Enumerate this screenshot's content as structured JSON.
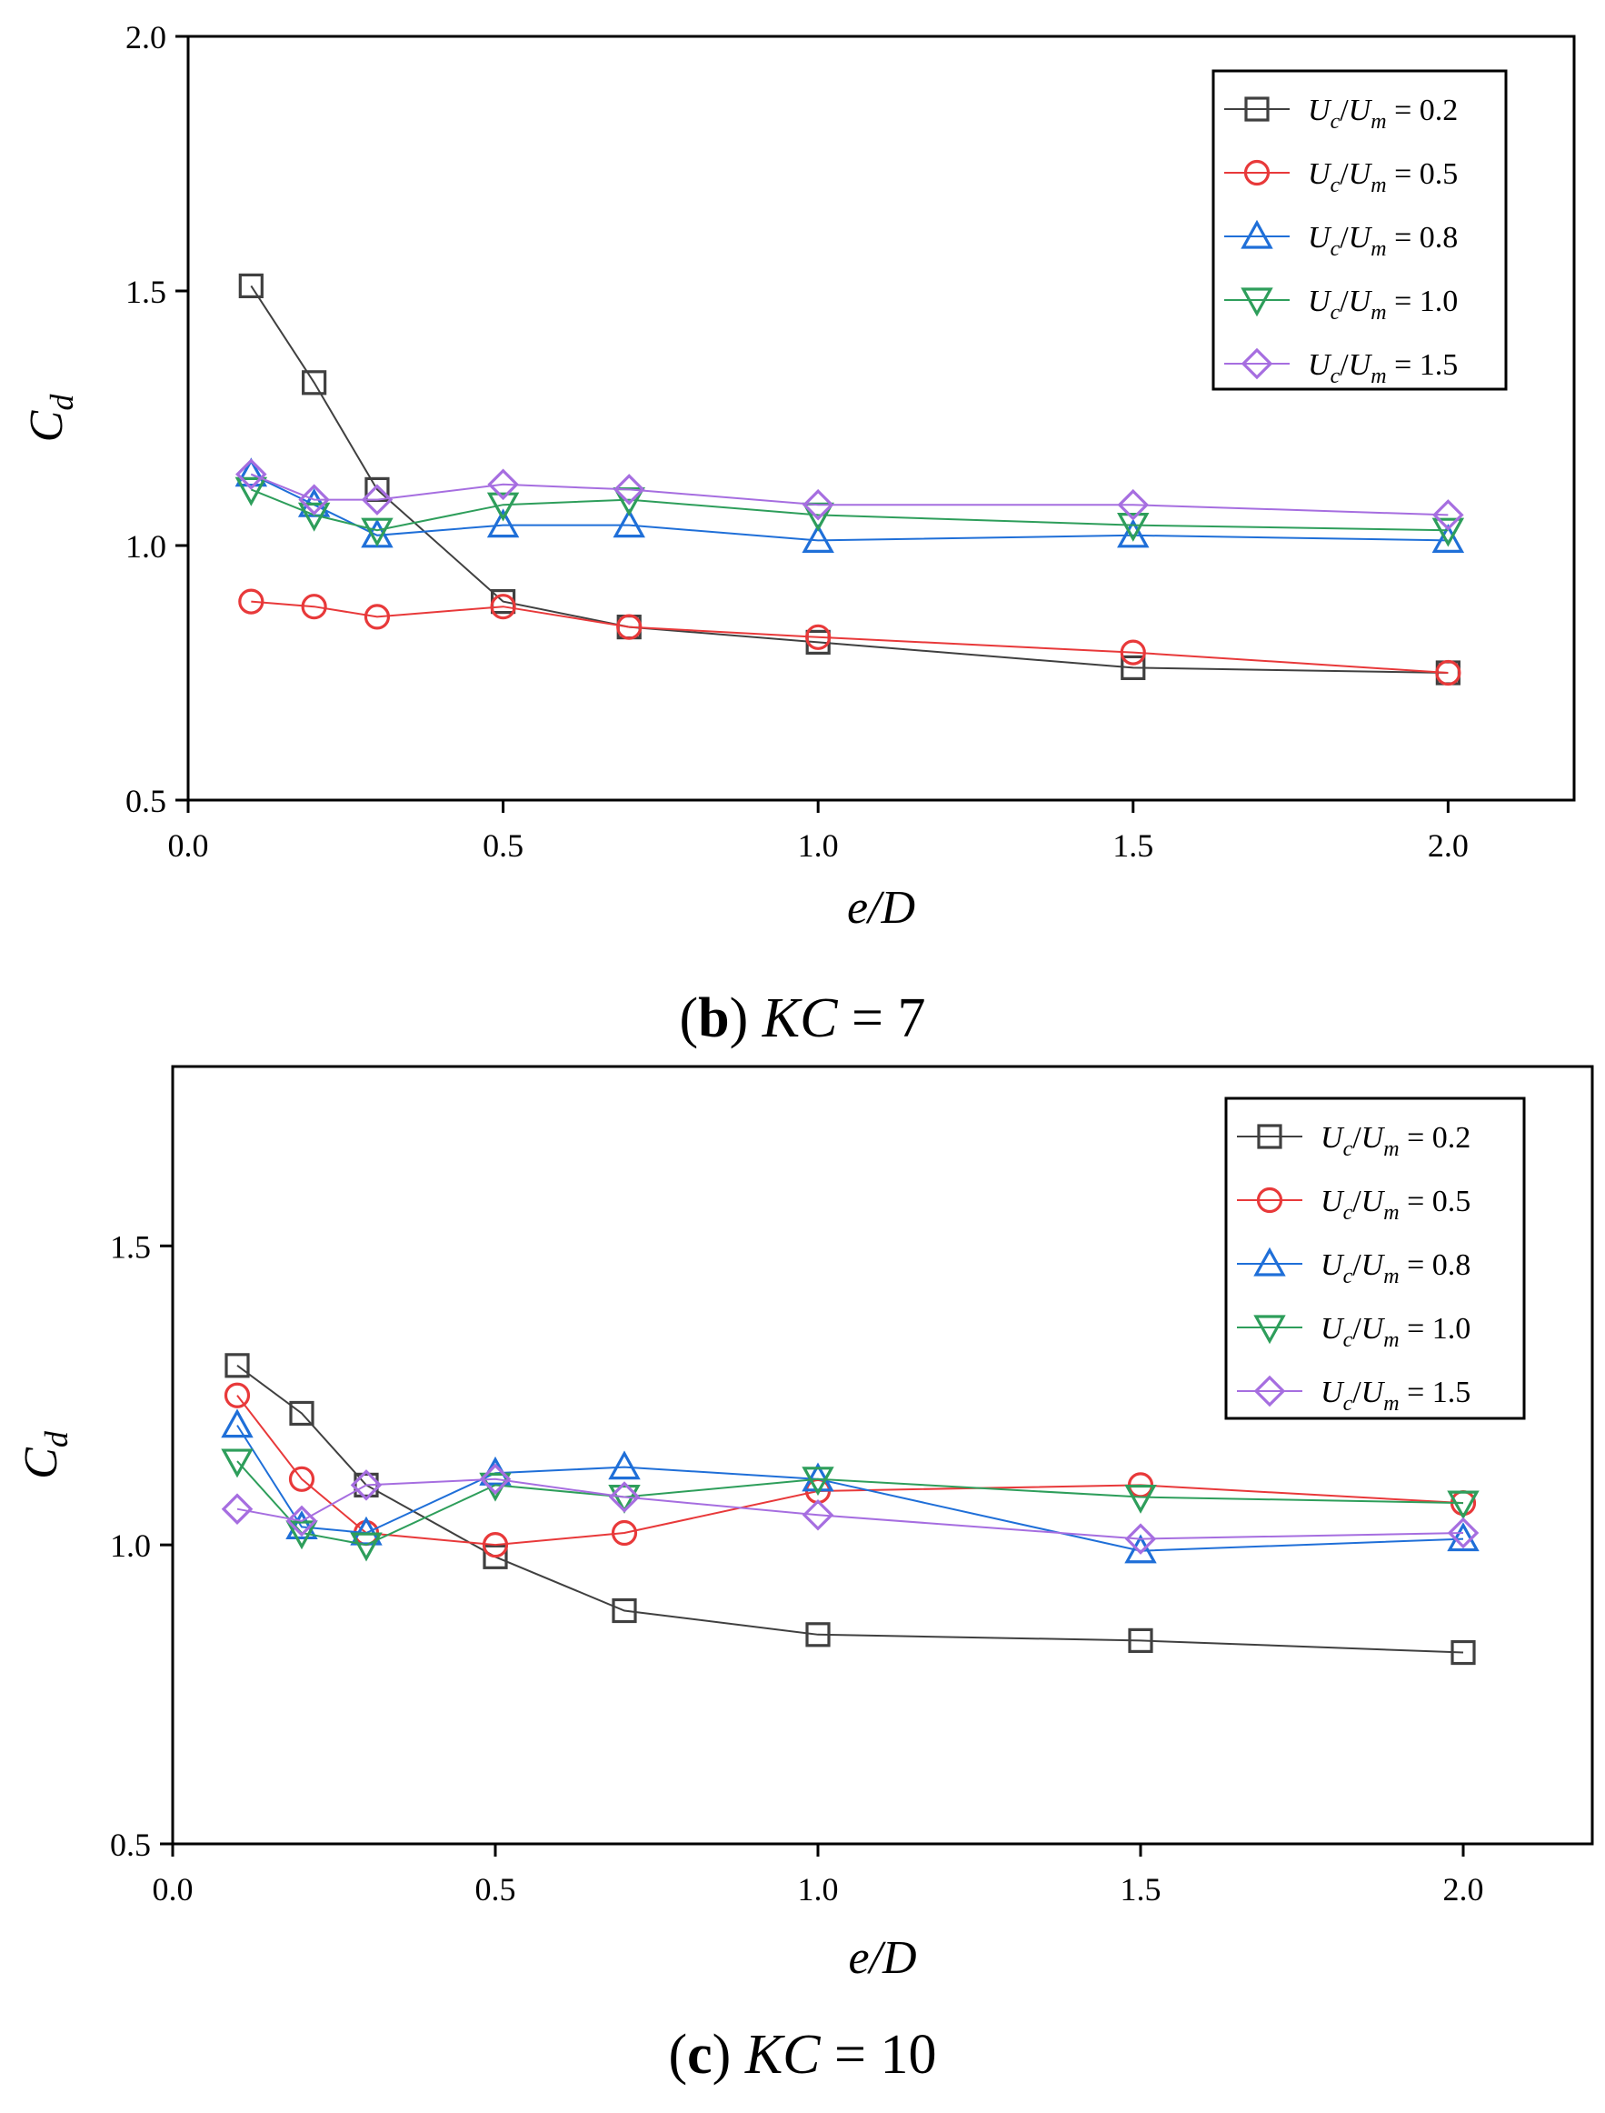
{
  "chart_data": [
    {
      "type": "line",
      "panel_label": "b",
      "caption_text": "KC = 7",
      "xlabel": "e/D",
      "ylabel": "C_d",
      "xlim": [
        0.0,
        2.2
      ],
      "ylim": [
        0.5,
        2.0
      ],
      "xticks": [
        "0.0",
        "0.5",
        "1.0",
        "1.5",
        "2.0"
      ],
      "yticks": [
        "0.5",
        "1.0",
        "1.5",
        "2.0"
      ],
      "legend_position": "top-right",
      "x": [
        0.1,
        0.2,
        0.3,
        0.5,
        0.7,
        1.0,
        1.5,
        2.0
      ],
      "series": [
        {
          "name": "Uc/Um = 0.2",
          "ratio": "0.2",
          "marker": "square",
          "color": "#404040",
          "values": [
            1.51,
            1.32,
            1.11,
            0.89,
            0.84,
            0.81,
            0.76,
            0.75
          ]
        },
        {
          "name": "Uc/Um = 0.5",
          "ratio": "0.5",
          "marker": "circle",
          "color": "#e8393a",
          "values": [
            0.89,
            0.88,
            0.86,
            0.88,
            0.84,
            0.82,
            0.79,
            0.75
          ]
        },
        {
          "name": "Uc/Um = 0.8",
          "ratio": "0.8",
          "marker": "triangle-up",
          "color": "#1f6fd8",
          "values": [
            1.14,
            1.08,
            1.02,
            1.04,
            1.04,
            1.01,
            1.02,
            1.01
          ]
        },
        {
          "name": "Uc/Um = 1.0",
          "ratio": "1.0",
          "marker": "triangle-down",
          "color": "#2e9e5b",
          "values": [
            1.11,
            1.06,
            1.03,
            1.08,
            1.09,
            1.06,
            1.04,
            1.03
          ]
        },
        {
          "name": "Uc/Um = 1.5",
          "ratio": "1.5",
          "marker": "diamond",
          "color": "#a66ee0",
          "values": [
            1.14,
            1.09,
            1.09,
            1.12,
            1.11,
            1.08,
            1.08,
            1.06
          ]
        }
      ]
    },
    {
      "type": "line",
      "panel_label": "c",
      "caption_text": "KC = 10",
      "xlabel": "e/D",
      "ylabel": "C_d",
      "xlim": [
        0.0,
        2.2
      ],
      "ylim": [
        0.5,
        1.8
      ],
      "xticks": [
        "0.0",
        "0.5",
        "1.0",
        "1.5",
        "2.0"
      ],
      "yticks": [
        "0.5",
        "1.0",
        "1.5"
      ],
      "legend_position": "top-right",
      "x": [
        0.1,
        0.2,
        0.3,
        0.5,
        0.7,
        1.0,
        1.5,
        2.0
      ],
      "series": [
        {
          "name": "Uc/Um = 0.2",
          "ratio": "0.2",
          "marker": "square",
          "color": "#404040",
          "values": [
            1.3,
            1.22,
            1.1,
            0.98,
            0.89,
            0.85,
            0.84,
            0.82
          ]
        },
        {
          "name": "Uc/Um = 0.5",
          "ratio": "0.5",
          "marker": "circle",
          "color": "#e8393a",
          "values": [
            1.25,
            1.11,
            1.02,
            1.0,
            1.02,
            1.09,
            1.1,
            1.07
          ]
        },
        {
          "name": "Uc/Um = 0.8",
          "ratio": "0.8",
          "marker": "triangle-up",
          "color": "#1f6fd8",
          "values": [
            1.2,
            1.03,
            1.02,
            1.12,
            1.13,
            1.11,
            0.99,
            1.01
          ]
        },
        {
          "name": "Uc/Um = 1.0",
          "ratio": "1.0",
          "marker": "triangle-down",
          "color": "#2e9e5b",
          "values": [
            1.14,
            1.02,
            1.0,
            1.1,
            1.08,
            1.11,
            1.08,
            1.07
          ]
        },
        {
          "name": "Uc/Um = 1.5",
          "ratio": "1.5",
          "marker": "diamond",
          "color": "#a66ee0",
          "values": [
            1.06,
            1.04,
            1.1,
            1.11,
            1.08,
            1.05,
            1.01,
            1.02
          ]
        }
      ]
    }
  ]
}
